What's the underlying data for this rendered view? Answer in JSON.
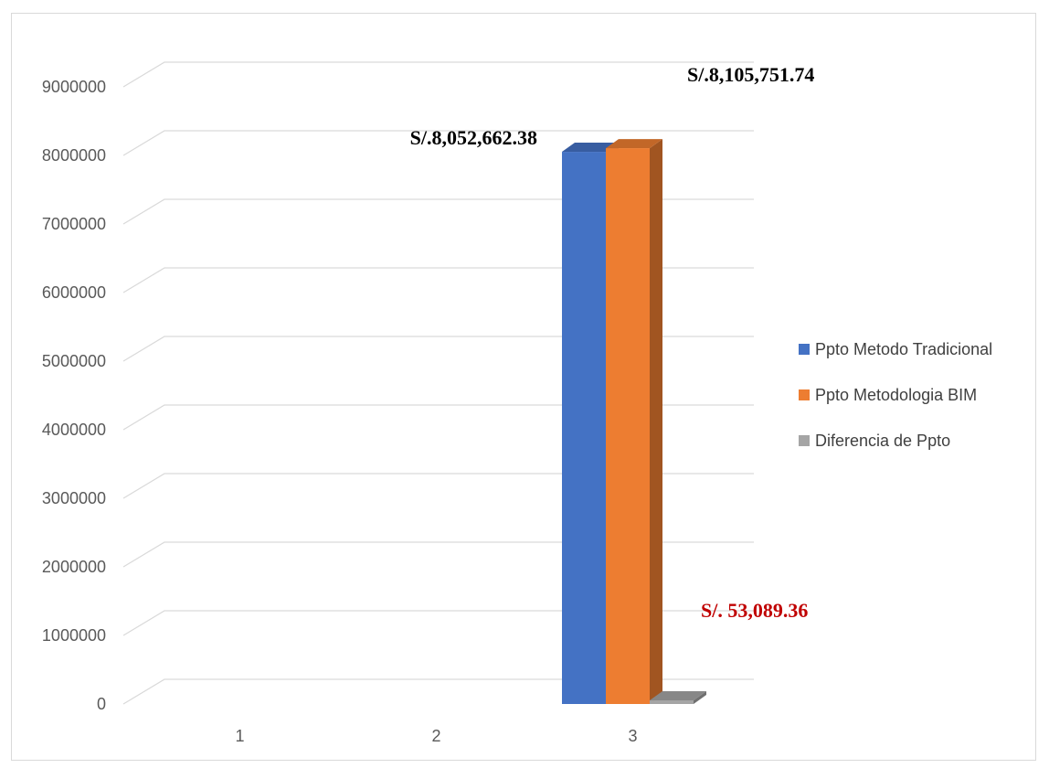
{
  "chart_data": {
    "type": "bar",
    "categories": [
      "1",
      "2",
      "3"
    ],
    "series": [
      {
        "name": "Ppto Metodo Tradicional",
        "color": "#4472C4",
        "values": [
          0,
          0,
          8052662.38
        ]
      },
      {
        "name": "Ppto Metodologia BIM",
        "color": "#ED7D31",
        "values": [
          0,
          0,
          8105751.74
        ]
      },
      {
        "name": "Diferencia de Ppto",
        "color": "#A5A5A5",
        "values": [
          0,
          0,
          53089.36
        ]
      }
    ],
    "ylim": [
      0,
      9000000
    ],
    "yticks": [
      "0",
      "1000000",
      "2000000",
      "3000000",
      "4000000",
      "5000000",
      "6000000",
      "7000000",
      "8000000",
      "9000000"
    ],
    "grid": true,
    "legend_position": "right",
    "data_labels": [
      {
        "text": "S/.8,052,662.38",
        "color": "#000000"
      },
      {
        "text": "S/.8,105,751.74",
        "color": "#000000"
      },
      {
        "text": "S/. 53,089.36",
        "color": "#C00000"
      }
    ]
  }
}
